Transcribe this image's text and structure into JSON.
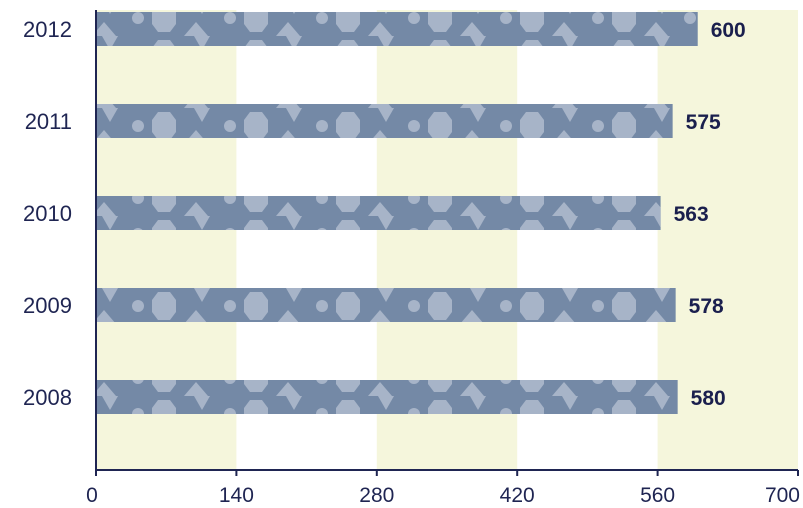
{
  "chart_data": {
    "type": "bar",
    "orientation": "horizontal",
    "categories": [
      "2012",
      "2011",
      "2010",
      "2009",
      "2008"
    ],
    "values": [
      600,
      575,
      563,
      578,
      580
    ],
    "data_labels": [
      "600",
      "575",
      "563",
      "578",
      "580"
    ],
    "xlim": [
      0,
      700
    ],
    "xticks": [
      0,
      140,
      280,
      420,
      560,
      700
    ],
    "xtick_labels": [
      "0",
      "140",
      "280",
      "420",
      "560",
      "700"
    ],
    "title": "",
    "xlabel": "",
    "ylabel": "",
    "grid": "alternating vertical bands",
    "legend": "none",
    "colors": {
      "bar": "#7489a6",
      "bar_pattern": "#a7b4c8",
      "band": "#f5f6dc",
      "axis": "#1f2552",
      "text": "#1f2552",
      "value_text": "#1a1f4d"
    }
  }
}
